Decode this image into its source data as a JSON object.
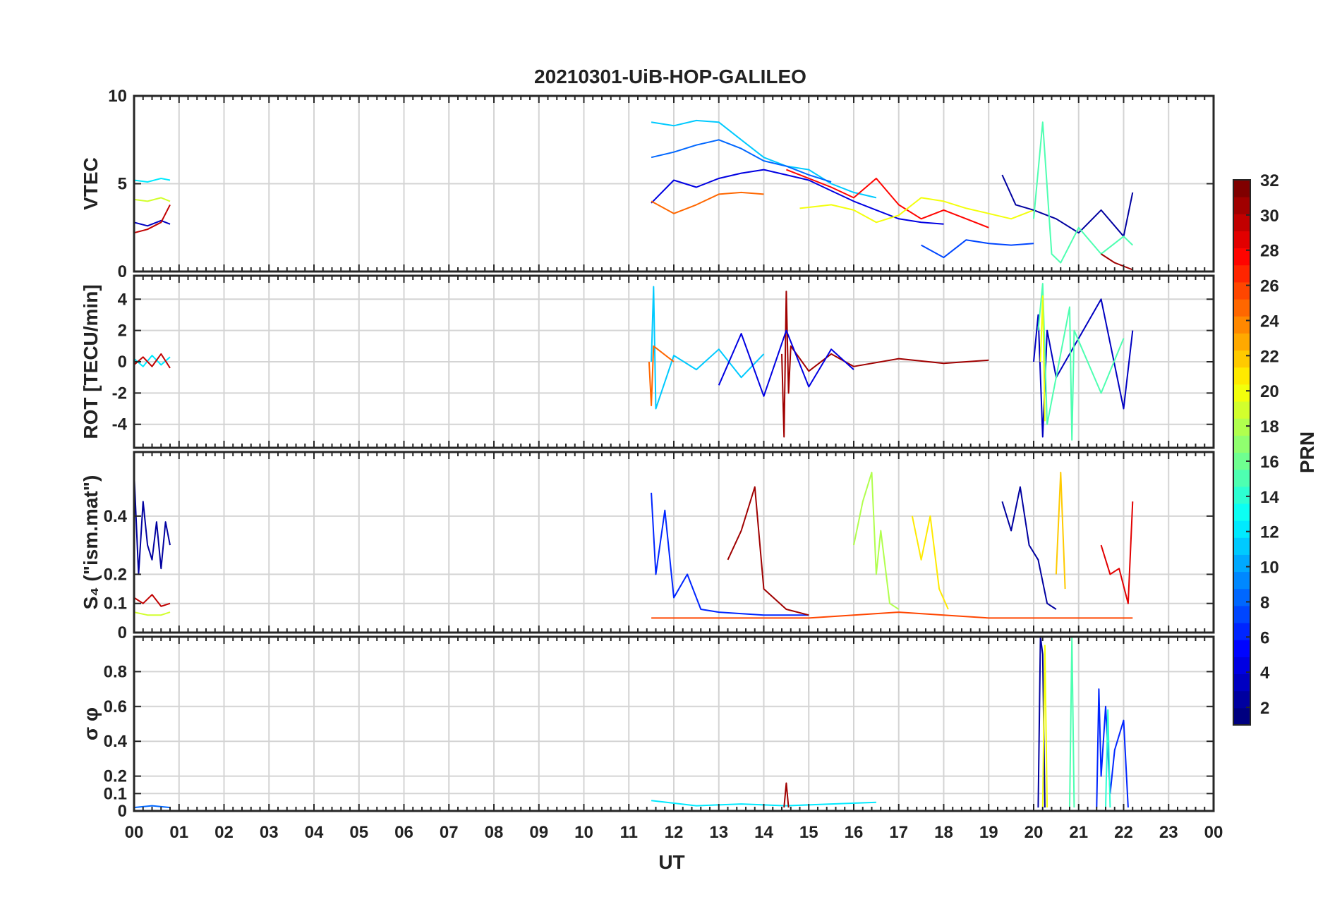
{
  "chart_data": {
    "type": "line",
    "title": "20210301-UiB-HOP-GALILEO",
    "xlabel": "UT",
    "x_tick_labels": [
      "00",
      "01",
      "02",
      "03",
      "04",
      "05",
      "06",
      "07",
      "08",
      "09",
      "10",
      "11",
      "12",
      "13",
      "14",
      "15",
      "16",
      "17",
      "18",
      "19",
      "20",
      "21",
      "22",
      "23",
      "00"
    ],
    "xlim": [
      0,
      24
    ],
    "grid": true,
    "panels": [
      {
        "id": "vtec",
        "ylabel": "VTEC",
        "ylim": [
          0,
          10
        ],
        "yticks": [
          0,
          5,
          10
        ],
        "ytick_labels": [
          "0",
          "5",
          "10"
        ],
        "series": [
          {
            "prn": 12,
            "x": [
              0.0,
              0.3,
              0.6,
              0.8
            ],
            "y": [
              5.2,
              5.1,
              5.3,
              5.2
            ]
          },
          {
            "prn": 19,
            "x": [
              0.0,
              0.3,
              0.6,
              0.8
            ],
            "y": [
              4.1,
              4.0,
              4.2,
              4.0
            ]
          },
          {
            "prn": 3,
            "x": [
              0.0,
              0.3,
              0.6,
              0.8
            ],
            "y": [
              2.8,
              2.6,
              2.9,
              2.7
            ]
          },
          {
            "prn": 30,
            "x": [
              0.0,
              0.3,
              0.6,
              0.8
            ],
            "y": [
              2.2,
              2.4,
              2.8,
              3.8
            ]
          },
          {
            "prn": 11,
            "x": [
              11.5,
              12.0,
              12.5,
              13.0,
              13.5,
              14.0,
              14.5,
              15.0,
              15.5,
              16.0,
              16.5
            ],
            "y": [
              8.5,
              8.3,
              8.6,
              8.5,
              7.5,
              6.5,
              6.0,
              5.8,
              5.0,
              4.5,
              4.2
            ]
          },
          {
            "prn": 8,
            "x": [
              11.5,
              12.0,
              12.5,
              13.0,
              13.5,
              14.0,
              14.5,
              15.0,
              15.5
            ],
            "y": [
              6.5,
              6.8,
              7.2,
              7.5,
              7.0,
              6.3,
              6.0,
              5.5,
              5.1
            ]
          },
          {
            "prn": 4,
            "x": [
              11.5,
              12.0,
              12.5,
              13.0,
              13.5,
              14.0,
              14.5,
              15.0,
              15.5,
              16.0,
              16.5,
              17.0,
              17.5,
              18.0
            ],
            "y": [
              3.9,
              5.2,
              4.8,
              5.3,
              5.6,
              5.8,
              5.5,
              5.2,
              4.6,
              4.0,
              3.5,
              3.0,
              2.8,
              2.7
            ]
          },
          {
            "prn": 25,
            "x": [
              11.5,
              12.0,
              12.5,
              13.0,
              13.5,
              14.0
            ],
            "y": [
              4.0,
              3.3,
              3.8,
              4.4,
              4.5,
              4.4
            ]
          },
          {
            "prn": 28,
            "x": [
              14.5,
              15.0,
              15.5,
              16.0,
              16.5,
              17.0,
              17.5,
              18.0,
              18.5,
              19.0
            ],
            "y": [
              5.8,
              5.3,
              4.8,
              4.2,
              5.3,
              3.8,
              3.0,
              3.5,
              3.0,
              2.5
            ]
          },
          {
            "prn": 20,
            "x": [
              14.8,
              15.5,
              16.0,
              16.5,
              17.0,
              17.5,
              18.0,
              18.5,
              19.0,
              19.5,
              20.0
            ],
            "y": [
              3.6,
              3.8,
              3.5,
              2.8,
              3.2,
              4.2,
              4.0,
              3.6,
              3.3,
              3.0,
              3.5
            ]
          },
          {
            "prn": 7,
            "x": [
              17.5,
              18.0,
              18.5,
              19.0,
              19.5,
              20.0
            ],
            "y": [
              1.5,
              0.8,
              1.8,
              1.6,
              1.5,
              1.6
            ]
          },
          {
            "prn": 2,
            "x": [
              19.3,
              19.6,
              20.0,
              20.5,
              21.0,
              21.5,
              22.0,
              22.2
            ],
            "y": [
              5.5,
              3.8,
              3.5,
              3.0,
              2.2,
              3.5,
              2.0,
              4.5
            ]
          },
          {
            "prn": 15,
            "x": [
              20.0,
              20.2,
              20.4,
              20.6,
              21.0,
              21.5,
              22.0,
              22.2
            ],
            "y": [
              3.0,
              8.5,
              1.0,
              0.5,
              2.5,
              1.0,
              2.0,
              1.5
            ]
          },
          {
            "prn": 31,
            "x": [
              21.5,
              21.8,
              22.0,
              22.2
            ],
            "y": [
              1.0,
              0.5,
              0.3,
              0.1
            ]
          }
        ]
      },
      {
        "id": "rot",
        "ylabel": "ROT [TECU/min]",
        "ylim": [
          -5.5,
          5.5
        ],
        "yticks": [
          -4,
          -2,
          0,
          2,
          4
        ],
        "ytick_labels": [
          "-4",
          "-2",
          "0",
          "2",
          "4"
        ],
        "series": [
          {
            "prn": 12,
            "x": [
              0.0,
              0.2,
              0.4,
              0.6,
              0.8
            ],
            "y": [
              0.2,
              -0.3,
              0.4,
              -0.2,
              0.3
            ]
          },
          {
            "prn": 30,
            "x": [
              0.0,
              0.2,
              0.4,
              0.6,
              0.8
            ],
            "y": [
              -0.2,
              0.3,
              -0.3,
              0.5,
              -0.4
            ]
          },
          {
            "prn": 11,
            "x": [
              11.5,
              11.55,
              11.6,
              12.0,
              12.5,
              13.0,
              13.5,
              14.0
            ],
            "y": [
              0,
              4.8,
              -3.0,
              0.4,
              -0.5,
              0.8,
              -1.0,
              0.5
            ]
          },
          {
            "prn": 25,
            "x": [
              11.45,
              11.5,
              11.55,
              12.0
            ],
            "y": [
              0,
              -2.8,
              1.0,
              0.0
            ]
          },
          {
            "prn": 31,
            "x": [
              14.4,
              14.45,
              14.5,
              14.55,
              14.6,
              15.0,
              15.5,
              16.0,
              17.0,
              18.0,
              19.0
            ],
            "y": [
              0.5,
              -4.8,
              4.5,
              -2.0,
              1.0,
              -0.6,
              0.5,
              -0.3,
              0.2,
              -0.1,
              0.1
            ]
          },
          {
            "prn": 4,
            "x": [
              13.0,
              13.5,
              14.0,
              14.5,
              15.0,
              15.5,
              16.0
            ],
            "y": [
              -1.5,
              1.8,
              -2.2,
              2.0,
              -1.6,
              0.8,
              -0.5
            ]
          },
          {
            "prn": 3,
            "x": [
              20.0,
              20.1,
              20.2,
              20.3,
              20.5,
              21.0,
              21.5,
              22.0,
              22.2
            ],
            "y": [
              0.0,
              3.0,
              -4.8,
              2.0,
              -1.0,
              1.5,
              4.0,
              -3.0,
              2.0
            ]
          },
          {
            "prn": 15,
            "x": [
              20.1,
              20.2,
              20.3,
              20.8,
              20.85,
              20.9,
              21.5,
              22.0
            ],
            "y": [
              2.0,
              5.0,
              -4.0,
              3.5,
              -5.0,
              2.0,
              -2.0,
              1.5
            ]
          },
          {
            "prn": 20,
            "x": [
              20.15,
              20.2,
              20.25
            ],
            "y": [
              0.0,
              4.2,
              -3.8
            ]
          }
        ]
      },
      {
        "id": "s4",
        "ylabel": "S₄ (\"ism.mat\")",
        "ylim": [
          0,
          0.62
        ],
        "yticks": [
          0,
          0.1,
          0.2,
          0.4
        ],
        "ytick_labels": [
          "0",
          "0.1",
          "0.2",
          "0.4"
        ],
        "series": [
          {
            "prn": 2,
            "x": [
              0.0,
              0.1,
              0.2,
              0.3,
              0.4,
              0.5,
              0.6,
              0.7,
              0.8
            ],
            "y": [
              0.55,
              0.2,
              0.45,
              0.3,
              0.25,
              0.38,
              0.22,
              0.38,
              0.3
            ]
          },
          {
            "prn": 30,
            "x": [
              0.0,
              0.2,
              0.4,
              0.6,
              0.8
            ],
            "y": [
              0.12,
              0.1,
              0.13,
              0.09,
              0.1
            ]
          },
          {
            "prn": 19,
            "x": [
              0.0,
              0.3,
              0.6,
              0.8
            ],
            "y": [
              0.07,
              0.06,
              0.06,
              0.07
            ]
          },
          {
            "prn": 6,
            "x": [
              11.5,
              11.6,
              11.8,
              12.0,
              12.3,
              12.6,
              13.0,
              14.0,
              15.0
            ],
            "y": [
              0.48,
              0.2,
              0.42,
              0.12,
              0.2,
              0.08,
              0.07,
              0.06,
              0.06
            ]
          },
          {
            "prn": 31,
            "x": [
              13.2,
              13.5,
              13.8,
              14.0,
              14.5,
              15.0
            ],
            "y": [
              0.25,
              0.35,
              0.5,
              0.15,
              0.08,
              0.06
            ]
          },
          {
            "prn": 18,
            "x": [
              16.0,
              16.2,
              16.4,
              16.5,
              16.6,
              16.8,
              17.0
            ],
            "y": [
              0.3,
              0.45,
              0.55,
              0.2,
              0.35,
              0.1,
              0.08
            ]
          },
          {
            "prn": 21,
            "x": [
              17.3,
              17.5,
              17.7,
              17.9,
              18.1
            ],
            "y": [
              0.4,
              0.25,
              0.4,
              0.15,
              0.08
            ]
          },
          {
            "prn": 2,
            "x": [
              19.3,
              19.5,
              19.7,
              19.9,
              20.1,
              20.3,
              20.5
            ],
            "y": [
              0.45,
              0.35,
              0.5,
              0.3,
              0.25,
              0.1,
              0.08
            ]
          },
          {
            "prn": 22,
            "x": [
              20.5,
              20.6,
              20.7
            ],
            "y": [
              0.2,
              0.55,
              0.15
            ]
          },
          {
            "prn": 29,
            "x": [
              21.5,
              21.7,
              21.9,
              22.1,
              22.2
            ],
            "y": [
              0.3,
              0.2,
              0.22,
              0.1,
              0.45
            ]
          },
          {
            "prn": 26,
            "x": [
              11.5,
              13.0,
              14.0,
              15.0,
              16.0,
              17.0,
              18.0,
              19.0,
              20.0,
              21.0,
              22.2
            ],
            "y": [
              0.05,
              0.05,
              0.05,
              0.05,
              0.06,
              0.07,
              0.06,
              0.05,
              0.05,
              0.05,
              0.05
            ]
          }
        ]
      },
      {
        "id": "sigma",
        "ylabel": "σ φ",
        "ylim": [
          0,
          1.0
        ],
        "yticks": [
          0,
          0.1,
          0.2,
          0.4,
          0.6,
          0.8
        ],
        "ytick_labels": [
          "0",
          "0.1",
          "0.2",
          "0.4",
          "0.6",
          "0.8"
        ],
        "series": [
          {
            "prn": 8,
            "x": [
              0.0,
              0.4,
              0.8
            ],
            "y": [
              0.02,
              0.03,
              0.02
            ]
          },
          {
            "prn": 12,
            "x": [
              11.5,
              12.5,
              13.5,
              14.5,
              15.5,
              16.5
            ],
            "y": [
              0.06,
              0.03,
              0.04,
              0.03,
              0.04,
              0.05
            ]
          },
          {
            "prn": 31,
            "x": [
              14.45,
              14.5,
              14.55
            ],
            "y": [
              0.02,
              0.16,
              0.02
            ]
          },
          {
            "prn": 2,
            "x": [
              20.1,
              20.15,
              20.2,
              20.25
            ],
            "y": [
              0.02,
              1.0,
              0.9,
              0.02
            ]
          },
          {
            "prn": 20,
            "x": [
              20.2,
              20.25,
              20.3
            ],
            "y": [
              0.02,
              0.95,
              0.02
            ]
          },
          {
            "prn": 15,
            "x": [
              20.8,
              20.85,
              20.9
            ],
            "y": [
              0.02,
              1.0,
              0.02
            ]
          },
          {
            "prn": 6,
            "x": [
              21.4,
              21.45,
              21.5,
              21.6,
              21.7,
              21.8,
              22.0,
              22.1
            ],
            "y": [
              0.02,
              0.7,
              0.2,
              0.6,
              0.1,
              0.35,
              0.52,
              0.02
            ]
          },
          {
            "prn": 14,
            "x": [
              21.6,
              21.65,
              21.7
            ],
            "y": [
              0.02,
              0.58,
              0.02
            ]
          }
        ]
      }
    ],
    "colorbar": {
      "label": "PRN",
      "colormap": "jet",
      "range": [
        1,
        32
      ],
      "tick_labels": [
        "2",
        "4",
        "6",
        "8",
        "10",
        "12",
        "14",
        "16",
        "18",
        "20",
        "22",
        "24",
        "26",
        "28",
        "30",
        "32"
      ],
      "ticks": [
        2,
        4,
        6,
        8,
        10,
        12,
        14,
        16,
        18,
        20,
        22,
        24,
        26,
        28,
        30,
        32
      ]
    }
  }
}
